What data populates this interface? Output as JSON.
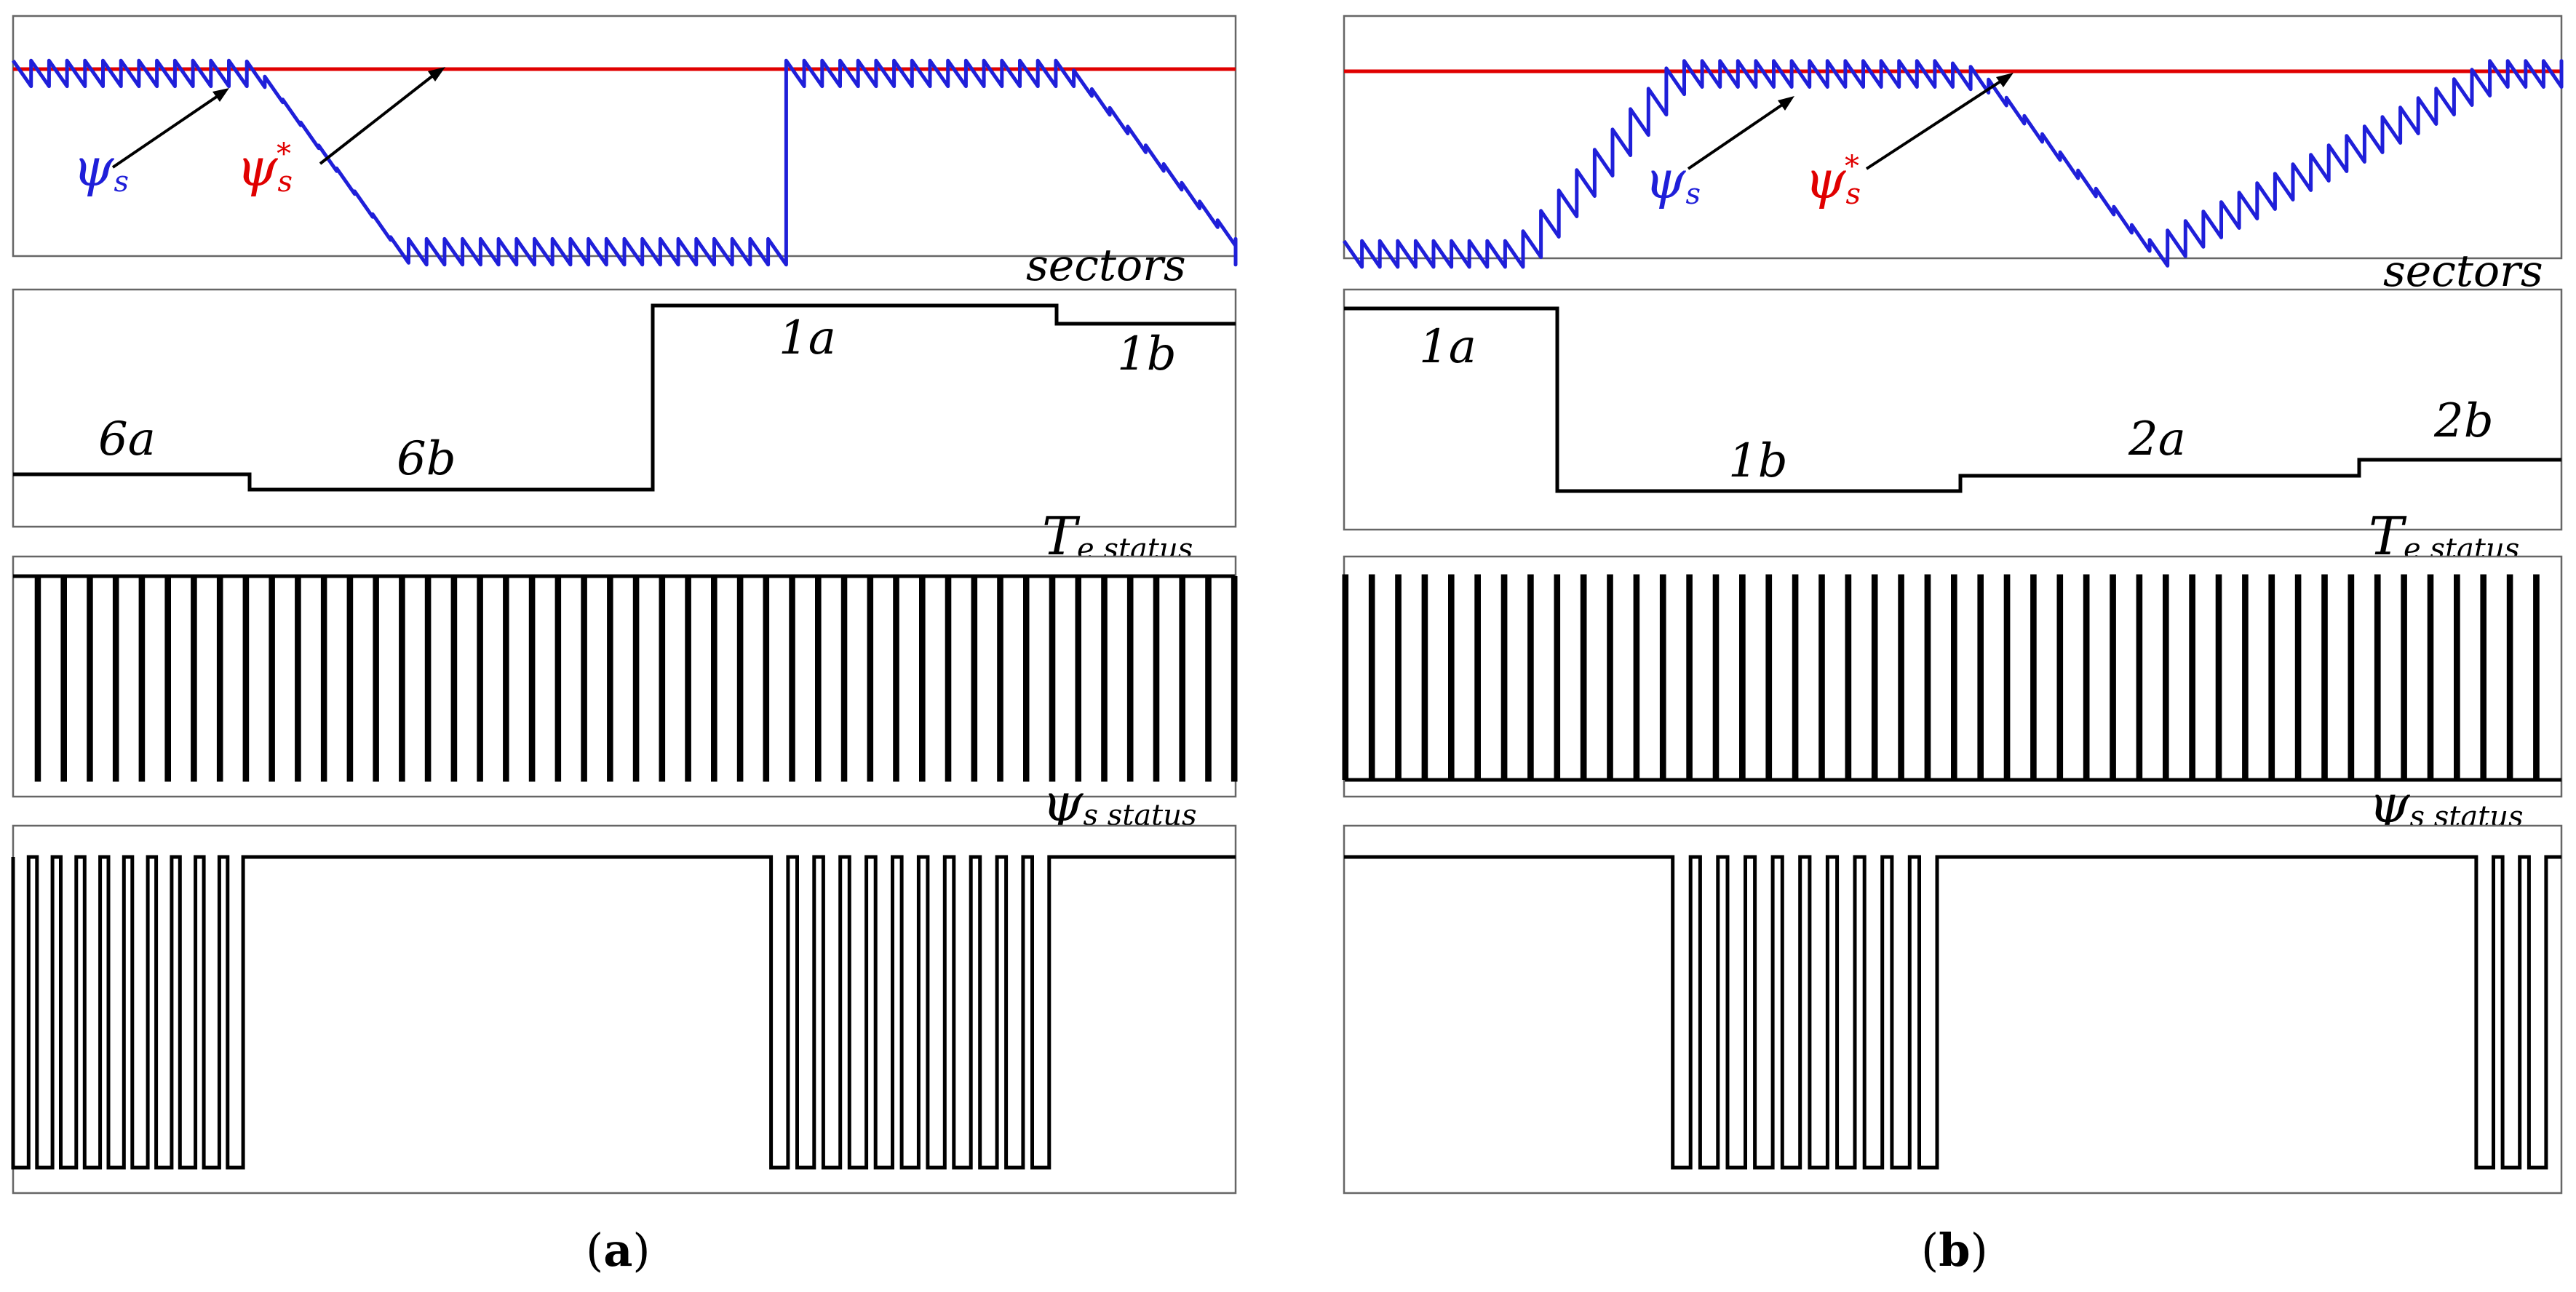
{
  "panels": [
    {
      "id": "a",
      "caption_open": "(",
      "caption_letter": "a",
      "caption_close": ")",
      "flux_labels": {
        "psi": "ψ",
        "psi_sub": "s",
        "ref": "ψ",
        "ref_sub": "s",
        "ref_sup": "*"
      },
      "plot_titles": {
        "sectors": "sectors",
        "te_main": "T",
        "te_sub": "e status",
        "psi_main": "ψ",
        "psi_sub": "s status"
      },
      "sector_labels": [
        "6a",
        "6b",
        "1a",
        "1b"
      ]
    },
    {
      "id": "b",
      "caption_open": "(",
      "caption_letter": "b",
      "caption_close": ")",
      "flux_labels": {
        "psi": "ψ",
        "psi_sub": "s",
        "ref": "ψ",
        "ref_sub": "s",
        "ref_sup": "*"
      },
      "plot_titles": {
        "sectors": "sectors",
        "te_main": "T",
        "te_sub": "e status",
        "psi_main": "ψ",
        "psi_sub": "s status"
      },
      "sector_labels": [
        "1a",
        "1b",
        "2a",
        "2b"
      ]
    }
  ],
  "chart_data": [
    {
      "panel": "a",
      "type": "line",
      "title": "",
      "series": [
        {
          "name": "ψs",
          "kind": "flux_magnitude",
          "color": "#1f1fd9",
          "t": [
            0,
            0.19,
            0.2,
            0.31,
            0.62,
            0.63,
            0.86,
            1.0
          ],
          "values": [
            0.02,
            0.02,
            0.0,
            -0.5,
            -0.5,
            0.02,
            0.02,
            -0.5
          ]
        },
        {
          "name": "ψs*",
          "kind": "flux_reference",
          "color": "#e00000",
          "value": 0.02
        }
      ],
      "ylim": [
        -0.55,
        0.15
      ]
    },
    {
      "panel": "a",
      "type": "line",
      "title": "sectors",
      "segments": [
        {
          "label": "6a",
          "t_start": 0.0,
          "t_end": 0.195,
          "level": 0.77
        },
        {
          "label": "6b",
          "t_start": 0.195,
          "t_end": 0.525,
          "level": 0.7
        },
        {
          "label": "1a",
          "t_start": 0.525,
          "t_end": 0.855,
          "level": 1.4
        },
        {
          "label": "1b",
          "t_start": 0.855,
          "t_end": 1.0,
          "level": 1.32
        }
      ],
      "ylim": [
        0.6,
        1.5
      ]
    },
    {
      "panel": "a",
      "type": "line",
      "title": "Te status",
      "pulse_train": {
        "levels": [
          0,
          1
        ],
        "pulses": 47,
        "duty": 0.9,
        "t_start": 0.0,
        "t_end": 1.0
      }
    },
    {
      "panel": "a",
      "type": "line",
      "title": "ψs status",
      "pulse_train": {
        "levels": [
          0,
          1
        ],
        "default_level": 1,
        "bursts": [
          {
            "t_start": 0.0,
            "t_end": 0.195,
            "pulses": 10
          },
          {
            "t_start": 0.62,
            "t_end": 0.855,
            "pulses": 11
          }
        ]
      }
    },
    {
      "panel": "b",
      "type": "line",
      "title": "",
      "series": [
        {
          "name": "ψs",
          "kind": "flux_magnitude",
          "color": "#1f1fd9",
          "t": [
            0.0,
            0.14,
            0.27,
            0.49,
            0.52,
            0.66,
            0.94,
            1.0
          ],
          "values": [
            -0.5,
            -0.5,
            0.02,
            0.02,
            0.0,
            -0.5,
            0.02,
            0.02
          ]
        },
        {
          "name": "ψs*",
          "kind": "flux_reference",
          "color": "#e00000",
          "value": 0.02
        }
      ],
      "ylim": [
        -0.55,
        0.15
      ]
    },
    {
      "panel": "b",
      "type": "line",
      "title": "sectors",
      "segments": [
        {
          "label": "1a",
          "t_start": 0.0,
          "t_end": 0.175,
          "level": 1.4
        },
        {
          "label": "1b",
          "t_start": 0.175,
          "t_end": 0.505,
          "level": 0.7
        },
        {
          "label": "2a",
          "t_start": 0.505,
          "t_end": 0.833,
          "level": 0.77
        },
        {
          "label": "2b",
          "t_start": 0.833,
          "t_end": 1.0,
          "level": 0.85
        }
      ],
      "ylim": [
        0.6,
        1.5
      ]
    },
    {
      "panel": "b",
      "type": "line",
      "title": "Te status",
      "pulse_train": {
        "levels": [
          0,
          1
        ],
        "pulses": 46,
        "duty": 0.1,
        "t_start": 0.0,
        "t_end": 1.0
      }
    },
    {
      "panel": "b",
      "type": "line",
      "title": "ψs status",
      "pulse_train": {
        "levels": [
          0,
          1
        ],
        "default_level": 1,
        "bursts": [
          {
            "t_start": 0.27,
            "t_end": 0.495,
            "pulses": 10
          },
          {
            "t_start": 0.93,
            "t_end": 0.995,
            "pulses": 3
          }
        ]
      }
    }
  ]
}
